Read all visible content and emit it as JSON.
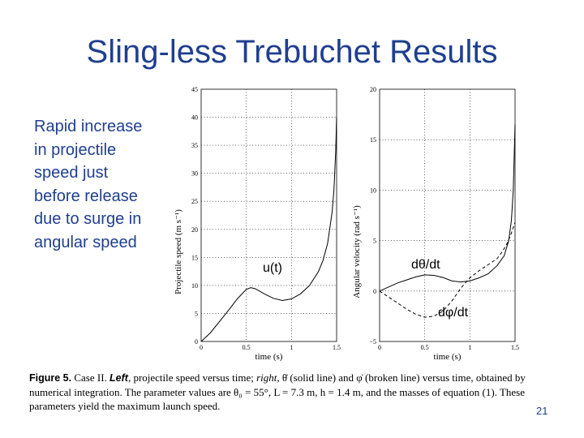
{
  "slide": {
    "title": "Sling-less Trebuchet Results",
    "bullet_lines": [
      "Rapid increase",
      "in projectile",
      "speed just",
      "before release",
      "due to surge in",
      "angular speed"
    ],
    "page_number": "21",
    "annotations": {
      "u": "u(t)",
      "dtheta": "dθ/dt",
      "dphi": "dφ/dt"
    }
  },
  "caption": {
    "fig_label": "Figure 5.",
    "text_1": " Case II. ",
    "left_word": "Left",
    "text_2": ", projectile speed versus time; ",
    "right_word": "right",
    "text_3": ", θ̇ (solid line) and φ̇ (broken line) versus time, obtained by numerical integration. The parameter values are θ₀ = 55°, L = 7.3 m, h = 1.4 m, and the masses of equation (1). These parameters yield the maximum launch speed."
  },
  "chart_data": [
    {
      "type": "line",
      "xlabel": "time (s)",
      "ylabel": "Projectile speed (m s⁻¹)",
      "xlim": [
        0,
        1.5
      ],
      "ylim": [
        0,
        45
      ],
      "xticks": [
        0,
        0.5,
        1,
        1.5
      ],
      "xtick_labels": [
        "0",
        "0.5",
        "1",
        "1.5"
      ],
      "yticks": [
        0,
        5,
        10,
        15,
        20,
        25,
        30,
        35,
        40,
        45
      ],
      "ytick_labels": [
        "0",
        "5",
        "10",
        "15",
        "20",
        "25",
        "30",
        "35",
        "40",
        "45"
      ],
      "grid": true,
      "series": [
        {
          "style": "solid",
          "color": "#000000",
          "x": [
            0,
            0.1,
            0.2,
            0.3,
            0.4,
            0.5,
            0.55,
            0.6,
            0.7,
            0.8,
            0.9,
            1.0,
            1.1,
            1.2,
            1.3,
            1.35,
            1.4,
            1.45,
            1.47,
            1.49,
            1.5
          ],
          "y": [
            0,
            1.5,
            3.5,
            5.5,
            7.6,
            9.3,
            9.6,
            9.4,
            8.5,
            7.7,
            7.3,
            7.6,
            8.5,
            10.0,
            12.5,
            14.5,
            17.5,
            23.0,
            27.0,
            34.0,
            40.0
          ]
        }
      ]
    },
    {
      "type": "line",
      "xlabel": "time (s)",
      "ylabel": "Angular velocity (rad s⁻¹)",
      "xlim": [
        0,
        1.5
      ],
      "ylim": [
        -5,
        20
      ],
      "xticks": [
        0,
        0.5,
        1,
        1.5
      ],
      "xtick_labels": [
        "0",
        "0.5",
        "1",
        "1.5"
      ],
      "yticks": [
        -5,
        0,
        5,
        10,
        15,
        20
      ],
      "ytick_labels": [
        "−5",
        "0",
        "5",
        "10",
        "15",
        "20"
      ],
      "grid": true,
      "series": [
        {
          "style": "solid",
          "color": "#000000",
          "x": [
            0,
            0.1,
            0.2,
            0.3,
            0.4,
            0.5,
            0.6,
            0.7,
            0.8,
            0.9,
            1.0,
            1.1,
            1.2,
            1.3,
            1.38,
            1.43,
            1.46,
            1.48,
            1.5
          ],
          "y": [
            0,
            0.4,
            0.8,
            1.1,
            1.4,
            1.6,
            1.55,
            1.35,
            1.0,
            0.9,
            1.0,
            1.3,
            1.7,
            2.5,
            3.5,
            5.0,
            7.0,
            10.0,
            16.5
          ]
        },
        {
          "style": "dashed",
          "color": "#000000",
          "x": [
            0,
            0.1,
            0.2,
            0.3,
            0.4,
            0.5,
            0.6,
            0.7,
            0.8,
            0.9,
            1.0,
            1.1,
            1.2,
            1.3,
            1.35,
            1.4,
            1.45,
            1.5
          ],
          "y": [
            0,
            -0.6,
            -1.2,
            -1.8,
            -2.3,
            -2.6,
            -2.5,
            -2.0,
            -1.0,
            0.3,
            1.3,
            2.0,
            2.6,
            3.2,
            3.8,
            4.5,
            5.5,
            6.8
          ]
        }
      ]
    }
  ]
}
